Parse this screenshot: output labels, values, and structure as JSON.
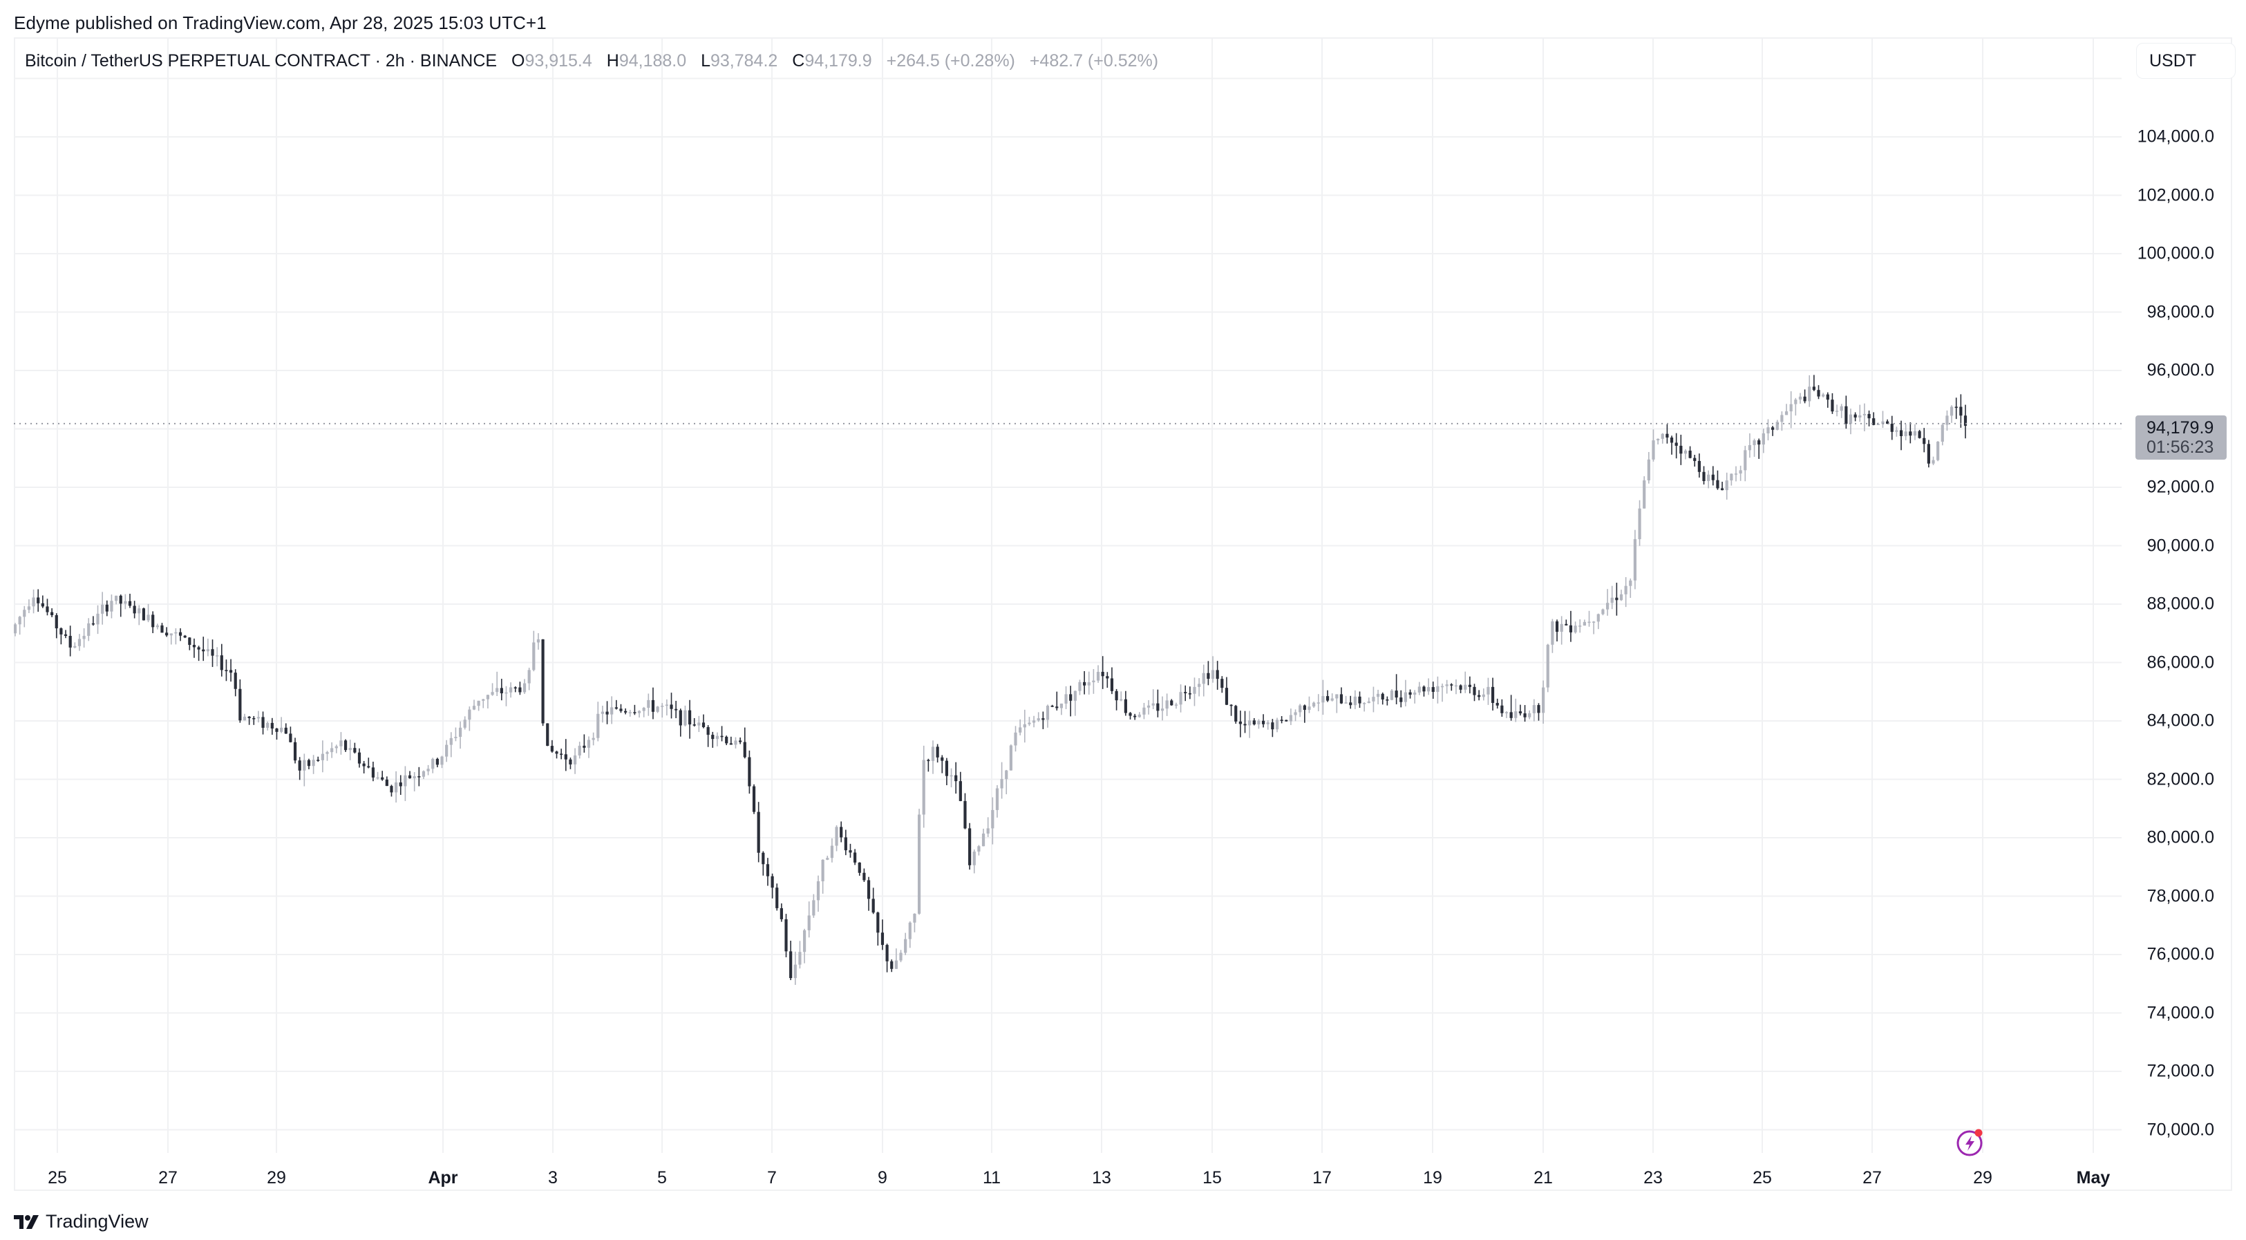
{
  "header": {
    "published": "Edyme published on TradingView.com, Apr 28, 2025 15:03 UTC+1"
  },
  "legend": {
    "symbol": "Bitcoin / TetherUS PERPETUAL CONTRACT · 2h · BINANCE",
    "open_label": "O",
    "open": "93,915.4",
    "high_label": "H",
    "high": "94,188.0",
    "low_label": "L",
    "low": "93,784.2",
    "close_label": "C",
    "close": "94,179.9",
    "change": "+264.5 (+0.28%)",
    "change2": "+482.7 (+0.52%)"
  },
  "price_scale": {
    "currency": "USDT",
    "labels": [
      "104,000.0",
      "102,000.0",
      "100,000.0",
      "98,000.0",
      "96,000.0",
      "92,000.0",
      "90,000.0",
      "88,000.0",
      "86,000.0",
      "84,000.0",
      "82,000.0",
      "80,000.0",
      "78,000.0",
      "76,000.0",
      "74,000.0",
      "72,000.0",
      "70,000.0"
    ],
    "last_price": "94,179.9",
    "countdown": "01:56:23"
  },
  "time_scale": {
    "labels": [
      {
        "text": "25",
        "bold": false
      },
      {
        "text": "27",
        "bold": false
      },
      {
        "text": "29",
        "bold": false
      },
      {
        "text": "Apr",
        "bold": true
      },
      {
        "text": "3",
        "bold": false
      },
      {
        "text": "5",
        "bold": false
      },
      {
        "text": "7",
        "bold": false
      },
      {
        "text": "9",
        "bold": false
      },
      {
        "text": "11",
        "bold": false
      },
      {
        "text": "13",
        "bold": false
      },
      {
        "text": "15",
        "bold": false
      },
      {
        "text": "17",
        "bold": false
      },
      {
        "text": "19",
        "bold": false
      },
      {
        "text": "21",
        "bold": false
      },
      {
        "text": "23",
        "bold": false
      },
      {
        "text": "25",
        "bold": false
      },
      {
        "text": "27",
        "bold": false
      },
      {
        "text": "29",
        "bold": false
      },
      {
        "text": "May",
        "bold": true
      }
    ]
  },
  "footer": {
    "brand": "TradingView"
  },
  "colors": {
    "up": "#b2b5be",
    "down": "#2a2e39",
    "grid": "#f0f1f3",
    "last_price_line": "#9598a1",
    "accent": "#9c27b0",
    "badge": "#f23645"
  },
  "chart_data": {
    "type": "candlestick",
    "title": "Bitcoin / TetherUS PERPETUAL CONTRACT · 2h · BINANCE",
    "xlabel": "",
    "ylabel": "USDT",
    "ylim": [
      69000,
      107000
    ],
    "interval": "2h",
    "x_range": [
      "2025-03-24",
      "2025-04-28"
    ],
    "yticks": [
      70000,
      72000,
      74000,
      76000,
      78000,
      80000,
      82000,
      84000,
      86000,
      88000,
      90000,
      92000,
      94000,
      96000,
      98000,
      100000,
      102000,
      104000
    ],
    "xticks": [
      "25",
      "27",
      "29",
      "Apr",
      "3",
      "5",
      "7",
      "9",
      "11",
      "13",
      "15",
      "17",
      "19",
      "21",
      "23",
      "25",
      "27",
      "29",
      "May"
    ],
    "grid": true,
    "last": {
      "open": 93915.4,
      "high": 94188.0,
      "low": 93784.2,
      "close": 94179.9,
      "change": 264.5,
      "change_pct": 0.28
    },
    "path_waypoints": [
      [
        "Mar 24 18:00",
        87000
      ],
      [
        "Mar 25 00:00",
        88400
      ],
      [
        "Mar 25 18:00",
        86500
      ],
      [
        "Mar 26 12:00",
        88200
      ],
      [
        "Mar 28 02:00",
        86400
      ],
      [
        "Mar 28 12:00",
        84200
      ],
      [
        "Mar 29 12:00",
        82300
      ],
      [
        "Mar 30 12:00",
        83200
      ],
      [
        "Mar 31 12:00",
        81700
      ],
      [
        "Apr 1 12:00",
        82600
      ],
      [
        "Apr 2 06:00",
        84800
      ],
      [
        "Apr 2 20:00",
        85200
      ],
      [
        "Apr 2 22:00",
        88400
      ],
      [
        "Apr 3 02:00",
        83000
      ],
      [
        "Apr 3 14:00",
        82700
      ],
      [
        "Apr 4 00:00",
        84300
      ],
      [
        "Apr 5 00:00",
        84500
      ],
      [
        "Apr 6 06:00",
        83400
      ],
      [
        "Apr 6 20:00",
        79400
      ],
      [
        "Apr 7 06:00",
        74500
      ],
      [
        "Apr 7 18:00",
        78500
      ],
      [
        "Apr 8 00:00",
        80300
      ],
      [
        "Apr 8 14:00",
        76400
      ],
      [
        "Apr 9 04:00",
        74600
      ],
      [
        "Apr 9 14:00",
        77300
      ],
      [
        "Apr 9 18:00",
        83500
      ],
      [
        "Apr 10 08:00",
        81500
      ],
      [
        "Apr 10 16:00",
        78500
      ],
      [
        "Apr 11 12:00",
        83500
      ],
      [
        "Apr 12 16:00",
        85000
      ],
      [
        "Apr 13 02:00",
        86100
      ],
      [
        "Apr 14 06:00",
        84200
      ],
      [
        "Apr 15 10:00",
        85800
      ],
      [
        "Apr 16 06:00",
        83000
      ],
      [
        "Apr 17 10:00",
        84500
      ],
      [
        "Apr 19 06:00",
        85400
      ],
      [
        "Apr 20 12:00",
        83800
      ],
      [
        "Apr 21 00:00",
        87200
      ],
      [
        "Apr 22 08:00",
        88400
      ],
      [
        "Apr 22 16:00",
        93200
      ],
      [
        "Apr 23 06:00",
        94800
      ],
      [
        "Apr 24 06:00",
        91700
      ],
      [
        "Apr 25 14:00",
        95700
      ],
      [
        "Apr 27 04:00",
        94000
      ],
      [
        "Apr 27 20:00",
        92600
      ],
      [
        "Apr 28 06:00",
        95500
      ],
      [
        "Apr 28 14:00",
        94179.9
      ]
    ],
    "range_high": 95700,
    "range_low": 74500
  }
}
